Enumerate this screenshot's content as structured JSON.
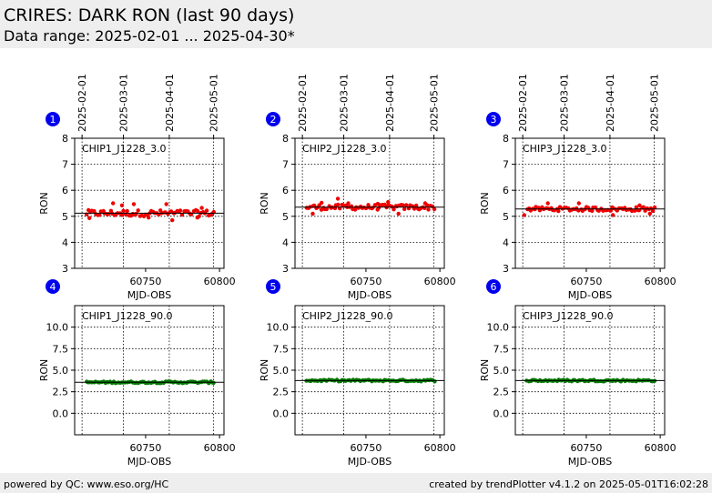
{
  "header": {
    "title": "CRIRES: DARK RON (last 90 days)",
    "subtitle": "Data range: 2025-02-01 ... 2025-04-30*"
  },
  "footer": {
    "left": "powered by QC: www.eso.org/HC",
    "right": "created by trendPlotter v4.1.2 on 2025-05-01T16:02:28"
  },
  "colors": {
    "panel_header_bg": "#eeeeee",
    "badge": "#0000ee",
    "red_points": "#ee0000",
    "green_points": "#007700",
    "reference_line": "#000000"
  },
  "top_axis": {
    "dates": [
      "2025-02-01",
      "2025-03-01",
      "2025-04-01",
      "2025-05-01"
    ],
    "mjd": [
      60707,
      60735,
      60766,
      60796
    ]
  },
  "chart_data": [
    {
      "type": "scatter",
      "number": "1",
      "label": "CHIP1_J1228_3.0",
      "xlabel": "MJD-OBS",
      "ylabel": "RON",
      "xlim": [
        60702,
        60803
      ],
      "ylim": [
        3,
        8
      ],
      "xticks": [
        60750,
        60800
      ],
      "xtick_labels": [
        "60750",
        "60800"
      ],
      "yticks": [
        3,
        4,
        5,
        6,
        7,
        8
      ],
      "ytick_labels": [
        "3",
        "4",
        "5",
        "6",
        "7",
        "8"
      ],
      "yref": 5.12,
      "point_color": "#ee0000",
      "jitter": 0.12,
      "outliers": [
        [
          60712,
          4.93
        ],
        [
          60728,
          5.5
        ],
        [
          60734,
          5.42
        ],
        [
          60742,
          5.47
        ],
        [
          60752,
          4.95
        ],
        [
          60764,
          5.47
        ],
        [
          60768,
          4.85
        ],
        [
          60785,
          4.95
        ],
        [
          60788,
          5.32
        ]
      ]
    },
    {
      "type": "scatter",
      "number": "2",
      "label": "CHIP2_J1228_3.0",
      "xlabel": "MJD-OBS",
      "ylabel": "RON",
      "xlim": [
        60702,
        60803
      ],
      "ylim": [
        3,
        8
      ],
      "xticks": [
        60750,
        60800
      ],
      "xtick_labels": [
        "60750",
        "60800"
      ],
      "yticks": [
        3,
        4,
        5,
        6,
        7,
        8
      ],
      "ytick_labels": [
        "3",
        "4",
        "5",
        "6",
        "7",
        "8"
      ],
      "yref": 5.35,
      "point_color": "#ee0000",
      "jitter": 0.1,
      "outliers": [
        [
          60714,
          5.1
        ],
        [
          60720,
          5.52
        ],
        [
          60731,
          5.68
        ],
        [
          60738,
          5.5
        ],
        [
          60758,
          5.48
        ],
        [
          60765,
          5.55
        ],
        [
          60772,
          5.1
        ],
        [
          60790,
          5.5
        ]
      ]
    },
    {
      "type": "scatter",
      "number": "3",
      "label": "CHIP3_J1228_3.0",
      "xlabel": "MJD-OBS",
      "ylabel": "RON",
      "xlim": [
        60702,
        60803
      ],
      "ylim": [
        3,
        8
      ],
      "xticks": [
        60750,
        60800
      ],
      "xtick_labels": [
        "60750",
        "60800"
      ],
      "yticks": [
        3,
        4,
        5,
        6,
        7,
        8
      ],
      "ytick_labels": [
        "3",
        "4",
        "5",
        "6",
        "7",
        "8"
      ],
      "yref": 5.28,
      "point_color": "#ee0000",
      "jitter": 0.08,
      "outliers": [
        [
          60708,
          5.05
        ],
        [
          60724,
          5.5
        ],
        [
          60745,
          5.5
        ],
        [
          60768,
          5.05
        ],
        [
          60786,
          5.42
        ],
        [
          60793,
          5.1
        ]
      ]
    },
    {
      "type": "scatter",
      "number": "4",
      "label": "CHIP1_J1228_90.0",
      "xlabel": "MJD-OBS",
      "ylabel": "RON",
      "xlim": [
        60702,
        60803
      ],
      "ylim": [
        -2.5,
        12.5
      ],
      "xticks": [
        60750,
        60800
      ],
      "xtick_labels": [
        "60750",
        "60800"
      ],
      "yticks": [
        0,
        2.5,
        5,
        7.5,
        10
      ],
      "ytick_labels": [
        "0.0",
        "2.5",
        "5.0",
        "7.5",
        "10.0"
      ],
      "yref": 3.6,
      "point_color": "#007700",
      "jitter": 0.1,
      "outliers": []
    },
    {
      "type": "scatter",
      "number": "5",
      "label": "CHIP2_J1228_90.0",
      "xlabel": "MJD-OBS",
      "ylabel": "RON",
      "xlim": [
        60702,
        60803
      ],
      "ylim": [
        -2.5,
        12.5
      ],
      "xticks": [
        60750,
        60800
      ],
      "xtick_labels": [
        "60750",
        "60800"
      ],
      "yticks": [
        0,
        2.5,
        5,
        7.5,
        10
      ],
      "ytick_labels": [
        "0.0",
        "2.5",
        "5.0",
        "7.5",
        "10.0"
      ],
      "yref": 3.8,
      "point_color": "#007700",
      "jitter": 0.1,
      "outliers": []
    },
    {
      "type": "scatter",
      "number": "6",
      "label": "CHIP3_J1228_90.0",
      "xlabel": "MJD-OBS",
      "ylabel": "RON",
      "xlim": [
        60702,
        60803
      ],
      "ylim": [
        -2.5,
        12.5
      ],
      "xticks": [
        60750,
        60800
      ],
      "xtick_labels": [
        "60750",
        "60800"
      ],
      "yticks": [
        0,
        2.5,
        5,
        7.5,
        10
      ],
      "ytick_labels": [
        "0.0",
        "2.5",
        "5.0",
        "7.5",
        "10.0"
      ],
      "yref": 3.8,
      "point_color": "#007700",
      "jitter": 0.1,
      "outliers": []
    }
  ]
}
